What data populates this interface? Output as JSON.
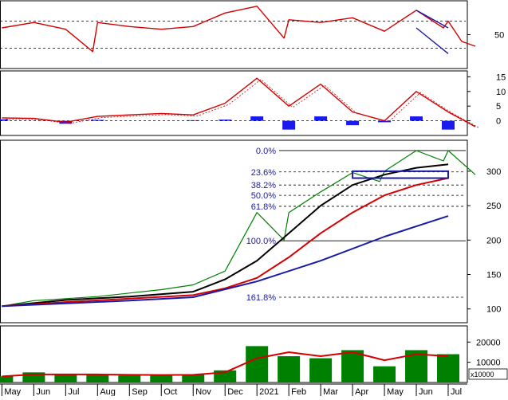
{
  "chart_data": [
    {
      "panel": "RSI",
      "type": "line",
      "ylim": [
        0,
        100
      ],
      "yticks": [
        50
      ],
      "reference_lines": [
        70,
        30
      ],
      "series": [
        {
          "color": "#d40000",
          "x": [
            "May 2020",
            "Jun 2020",
            "Jul 2020",
            "Jul 2020",
            "Aug 2020",
            "Sep 2020",
            "Oct 2020",
            "Nov 2020",
            "Dec 2020",
            "Jan 2021",
            "Jan 2021",
            "Feb 2021",
            "Mar 2021",
            "Apr 2021",
            "May 2021",
            "Jun 2021",
            "Jun 2021",
            "Jul 2021",
            "Jul 2021",
            "Jul 2021"
          ],
          "values": [
            60,
            68,
            58,
            25,
            68,
            62,
            58,
            62,
            82,
            92,
            45,
            72,
            68,
            75,
            55,
            86,
            60,
            70,
            40,
            33
          ]
        }
      ],
      "annotations": [
        {
          "type": "channel",
          "color": "#1a1aaa",
          "x": [
            "Jun 2021",
            "Jul 2021"
          ],
          "upper": [
            86,
            60
          ],
          "lower": [
            60,
            22
          ]
        }
      ]
    },
    {
      "panel": "MACD",
      "type": "line",
      "ylim": [
        -5,
        17
      ],
      "yticks": [
        0,
        5,
        10,
        15
      ],
      "series": [
        {
          "name": "",
          "color": "#d40000",
          "x": [
            "May 2020",
            "Jun 2020",
            "Jul 2020",
            "Aug 2020",
            "Sep 2020",
            "Oct 2020",
            "Nov 2020",
            "Dec 2020",
            "Jan 2021",
            "Feb 2021",
            "Mar 2021",
            "Apr 2021",
            "May 2021",
            "Jun 2021",
            "Jul 2021",
            "Jul 2021"
          ],
          "values": [
            1,
            0.8,
            -0.5,
            1.5,
            2,
            2.5,
            2,
            6,
            14.5,
            5,
            12.5,
            3,
            0,
            10,
            3,
            -2
          ]
        }
      ],
      "histogram": {
        "color": "#1a1aee",
        "x": [
          "May 2020",
          "Jul 2020",
          "Aug 2020",
          "Nov 2020",
          "Dec 2020",
          "Jan 2021",
          "Feb 2021",
          "Mar 2021",
          "Apr 2021",
          "May 2021",
          "Jun 2021",
          "Jul 2021"
        ],
        "values": [
          0.5,
          -1,
          0.3,
          0.2,
          0.4,
          1.5,
          -3,
          1.5,
          -1.5,
          -0.5,
          1.5,
          -3
        ]
      }
    },
    {
      "panel": "Price",
      "type": "line",
      "ylim": [
        80,
        345
      ],
      "yticks": [
        100,
        150,
        200,
        250,
        300
      ],
      "fibonacci": {
        "color": "#1a1aaa",
        "levels": [
          {
            "label": "0.0%",
            "value": 330
          },
          {
            "label": "23.6%",
            "value": 299
          },
          {
            "label": "38.2%",
            "value": 280
          },
          {
            "label": "50.0%",
            "value": 265
          },
          {
            "label": "61.8%",
            "value": 249
          },
          {
            "label": "100.0%",
            "value": 199
          },
          {
            "label": "161.8%",
            "value": 117
          }
        ]
      },
      "series": [
        {
          "color": "#008000",
          "x": [
            "May 2020",
            "Jun 2020",
            "Jul 2020",
            "Aug 2020",
            "Sep 2020",
            "Oct 2020",
            "Nov 2020",
            "Dec 2020",
            "Jan 2021",
            "Jan 2021",
            "Feb 2021",
            "Mar 2021",
            "Apr 2021",
            "Apr 2021",
            "May 2021",
            "Jun 2021",
            "Jun 2021",
            "Jul 2021",
            "Jul 2021"
          ],
          "values": [
            104,
            112,
            115,
            118,
            123,
            128,
            135,
            155,
            240,
            200,
            240,
            270,
            298,
            285,
            300,
            330,
            315,
            330,
            295
          ]
        },
        {
          "color": "#000000",
          "x": [
            "May 2020",
            "Jul 2020",
            "Sep 2020",
            "Nov 2020",
            "Dec 2020",
            "Jan 2021",
            "Feb 2021",
            "Mar 2021",
            "Apr 2021",
            "May 2021",
            "Jun 2021",
            "Jul 2021"
          ],
          "values": [
            104,
            113,
            118,
            125,
            143,
            170,
            210,
            250,
            280,
            295,
            305,
            310
          ]
        },
        {
          "color": "#d40000",
          "x": [
            "May 2020",
            "Jul 2020",
            "Sep 2020",
            "Nov 2020",
            "Dec 2020",
            "Jan 2021",
            "Feb 2021",
            "Mar 2021",
            "Apr 2021",
            "May 2021",
            "Jun 2021",
            "Jul 2021"
          ],
          "values": [
            104,
            110,
            115,
            120,
            130,
            145,
            175,
            210,
            240,
            265,
            280,
            290
          ]
        },
        {
          "color": "#1a1aaa",
          "x": [
            "May 2020",
            "Jul 2020",
            "Sep 2020",
            "Nov 2020",
            "Jan 2021",
            "Mar 2021",
            "May 2021",
            "Jul 2021"
          ],
          "values": [
            104,
            108,
            112,
            117,
            140,
            170,
            205,
            235
          ]
        }
      ],
      "annotations": [
        {
          "type": "rectangle",
          "color": "#1a1aaa",
          "x": [
            "Apr 2021",
            "Jul 2021"
          ],
          "y": [
            290,
            300
          ]
        }
      ]
    },
    {
      "panel": "Volume",
      "type": "bar",
      "ylim": [
        0,
        28000
      ],
      "yticks": [
        10000,
        20000
      ],
      "unit_label": "x10000",
      "bar_color": "#008000",
      "ma_color": "#d40000",
      "x": [
        "May 2020",
        "Jun 2020",
        "Jul 2020",
        "Aug 2020",
        "Sep 2020",
        "Oct 2020",
        "Nov 2020",
        "Dec 2020",
        "Jan 2021",
        "Feb 2021",
        "Mar 2021",
        "Apr 2021",
        "May 2021",
        "Jun 2021",
        "Jul 2021"
      ],
      "values": [
        3000,
        5000,
        4000,
        4000,
        3500,
        3500,
        4000,
        6000,
        18000,
        13000,
        12000,
        16000,
        8000,
        16000,
        14000
      ],
      "ma_values": [
        3000,
        4000,
        4000,
        4000,
        3800,
        3700,
        3800,
        5000,
        12000,
        15000,
        13000,
        15000,
        11000,
        14000,
        13000
      ]
    },
    {
      "panel": "TimeAxis",
      "categories": [
        "May",
        "Jun",
        "Jul",
        "Aug",
        "Sep",
        "Oct",
        "Nov",
        "Dec",
        "2021",
        "Feb",
        "Mar",
        "Apr",
        "May",
        "Jun",
        "Jul"
      ]
    }
  ]
}
